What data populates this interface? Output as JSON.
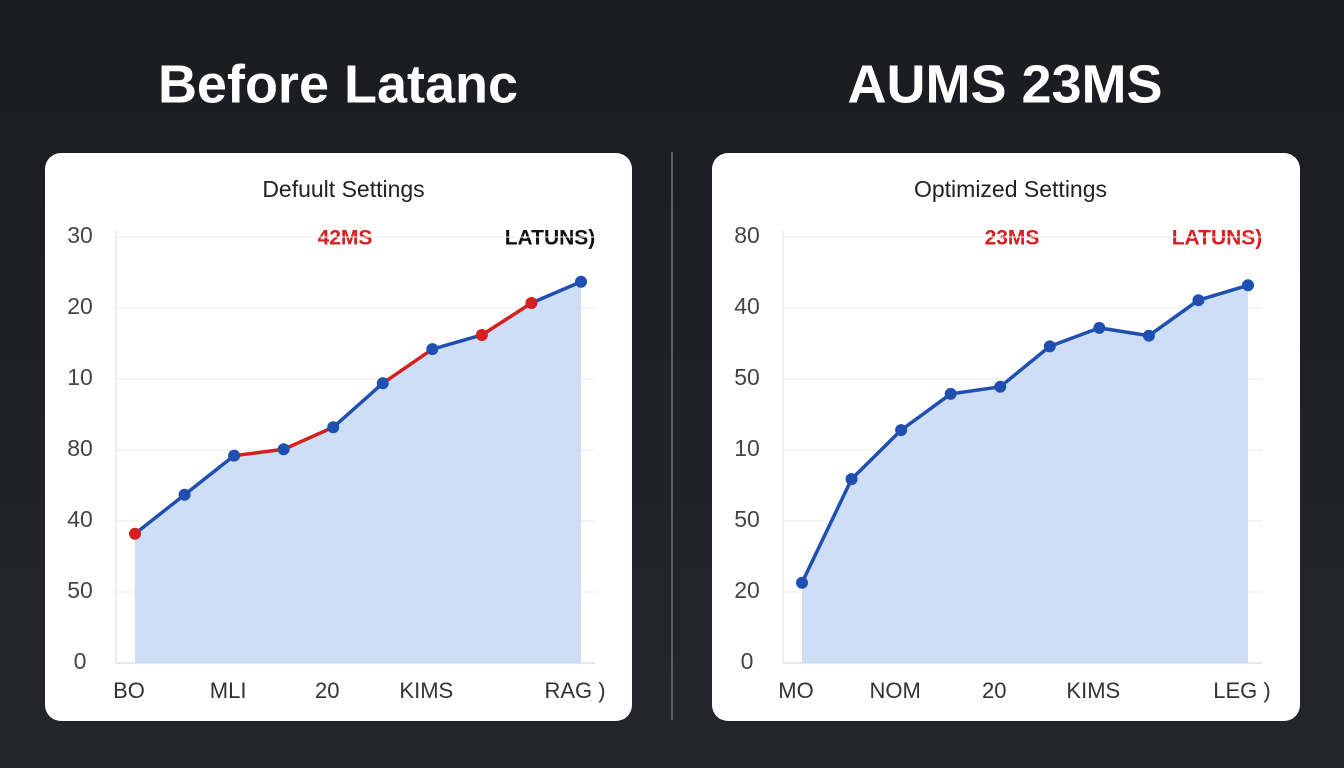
{
  "headings": [
    "Before Latanc",
    "AUMS 23MS"
  ],
  "chart_data": [
    {
      "type": "line",
      "title": "Defuult Settings",
      "annotations": [
        {
          "text": "42MS",
          "color": "#d62020"
        },
        {
          "text": "LATUNS)",
          "color": "#111111"
        }
      ],
      "categories": [
        "BO",
        null,
        "MLI",
        null,
        "20",
        null,
        "KIMS",
        null,
        null,
        "RAG )"
      ],
      "values": [
        1.82,
        2.37,
        2.92,
        3.01,
        3.32,
        3.94,
        4.42,
        4.62,
        5.07,
        5.37
      ],
      "color": "#1f4fb0",
      "area_color": "#c9daf3",
      "segment_colors": [
        "#1f4fb0",
        "#1f4fb0",
        "#d62020",
        "#d62020",
        "#1f4fb0",
        "#d62020",
        "#1f4fb0",
        "#d62020",
        "#1f4fb0"
      ],
      "marker_colors": [
        "#d62020",
        "#1f4fb0",
        "#1f4fb0",
        "#1f4fb0",
        "#1f4fb0",
        "#1f4fb0",
        "#1f4fb0",
        "#d62020",
        "#d62020",
        "#1f4fb0"
      ],
      "ylim": [
        0,
        6
      ],
      "yticks": [
        0,
        {
          "value": 1,
          "label": "50"
        },
        {
          "value": 2,
          "label": "40"
        },
        {
          "value": 3,
          "label": "80"
        },
        {
          "value": 4,
          "label": "10"
        },
        {
          "value": 5,
          "label": "20"
        },
        {
          "value": 6,
          "label": "30"
        }
      ],
      "grid": true
    },
    {
      "type": "line",
      "title": "Optimized Settings",
      "annotations": [
        {
          "text": "23MS",
          "color": "#d62020"
        },
        {
          "text": "LATUNS)",
          "color": "#d62020"
        }
      ],
      "categories": [
        "MO",
        null,
        "NOM",
        null,
        "20",
        null,
        "KIMS",
        null,
        null,
        "LEG )"
      ],
      "values": [
        1.13,
        2.59,
        3.28,
        3.79,
        3.89,
        4.46,
        4.72,
        4.61,
        5.11,
        5.32
      ],
      "color": "#1f4fb0",
      "area_color": "#c9daf3",
      "ylim": [
        0,
        6
      ],
      "yticks": [
        0,
        {
          "value": 1,
          "label": "20"
        },
        {
          "value": 2,
          "label": "50"
        },
        {
          "value": 3,
          "label": "10"
        },
        {
          "value": 4,
          "label": "50"
        },
        {
          "value": 5,
          "label": "40"
        },
        {
          "value": 6,
          "label": "80"
        }
      ],
      "grid": true
    }
  ]
}
